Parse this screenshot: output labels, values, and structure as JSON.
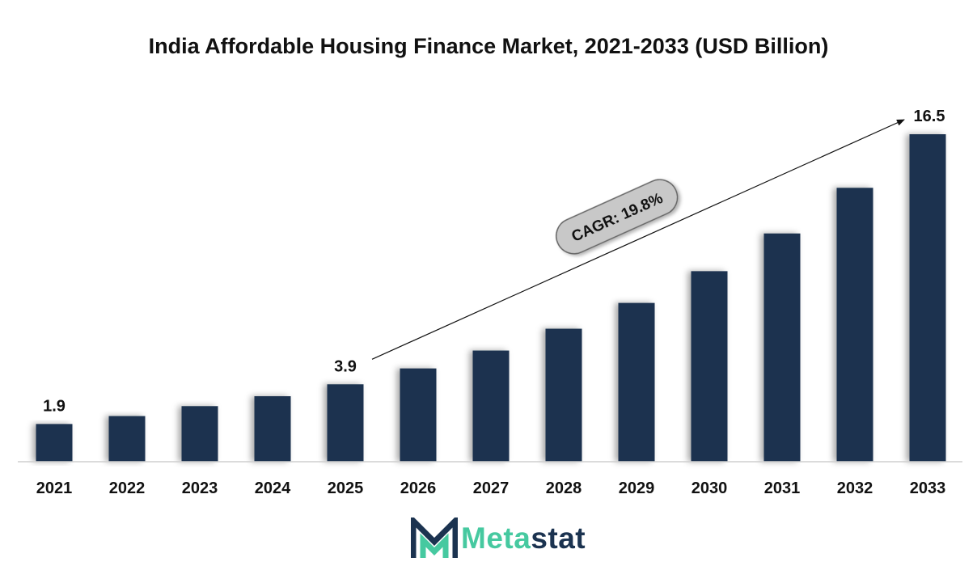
{
  "chart_data": {
    "type": "bar",
    "title": "India Affordable Housing Finance Market, 2021-2033 (USD Billion)",
    "categories": [
      "2021",
      "2022",
      "2023",
      "2024",
      "2025",
      "2026",
      "2027",
      "2028",
      "2029",
      "2030",
      "2031",
      "2032",
      "2033"
    ],
    "values": [
      1.9,
      2.3,
      2.8,
      3.3,
      3.9,
      4.7,
      5.6,
      6.7,
      8.0,
      9.6,
      11.5,
      13.8,
      16.5
    ],
    "data_labels": [
      {
        "category": "2021",
        "text": "1.9"
      },
      {
        "category": "2025",
        "text": "3.9"
      },
      {
        "category": "2033",
        "text": "16.5"
      }
    ],
    "annotation": {
      "text": "CAGR: 19.8%",
      "from": "2025",
      "to": "2033"
    },
    "ylim": [
      0,
      16.5
    ],
    "grid": false,
    "bar_color": "#1b3350"
  },
  "logo": {
    "part1": "Meta",
    "part2": "stat"
  },
  "colors": {
    "accent": "#46c9a0",
    "brand": "#1b3350"
  }
}
